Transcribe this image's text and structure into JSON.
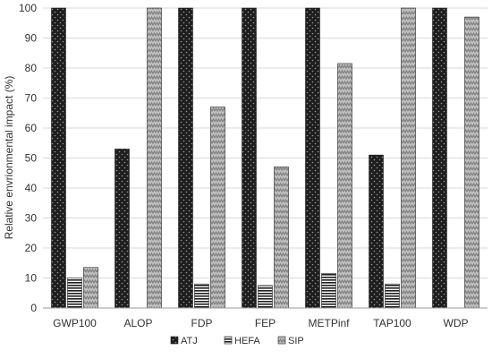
{
  "chart_data": {
    "type": "bar",
    "title": "",
    "xlabel": "",
    "ylabel": "Relative envrionmental impact (%)",
    "ylim": [
      0,
      100
    ],
    "yticks": [
      0,
      10,
      20,
      30,
      40,
      50,
      60,
      70,
      80,
      90,
      100
    ],
    "grid": true,
    "legend_position": "bottom",
    "categories": [
      "GWP100",
      "ALOP",
      "FDP",
      "FEP",
      "METPinf",
      "TAP100",
      "WDP"
    ],
    "series": [
      {
        "name": "ATJ",
        "pattern": "dots",
        "color": "#222222",
        "values": [
          100,
          53,
          100,
          100,
          100,
          51,
          100
        ]
      },
      {
        "name": "HEFA",
        "pattern": "horizontal-stripes",
        "color": "#222222",
        "values": [
          10,
          0,
          8,
          7.5,
          11.5,
          8,
          0
        ]
      },
      {
        "name": "SIP",
        "pattern": "zigzag",
        "color": "#a8a8a8",
        "values": [
          13.5,
          100,
          67,
          47,
          81.5,
          100,
          97
        ]
      }
    ]
  }
}
